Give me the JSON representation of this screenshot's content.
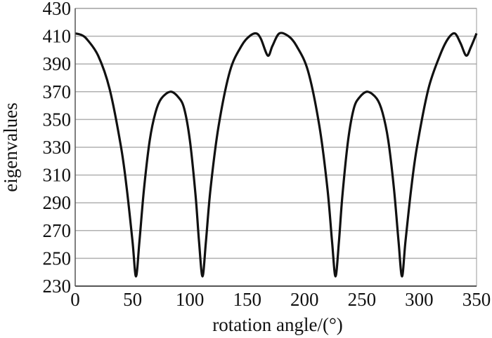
{
  "chart_data": {
    "type": "line",
    "title": "",
    "xlabel": "rotation angle/(°)",
    "ylabel": "eigenvalues",
    "xlim": [
      0,
      350
    ],
    "ylim": [
      230,
      430
    ],
    "xticks": [
      0,
      50,
      100,
      150,
      200,
      250,
      300,
      350
    ],
    "yticks": [
      230,
      250,
      270,
      290,
      310,
      330,
      350,
      370,
      390,
      410,
      430
    ],
    "grid": "horizontal",
    "colors": {
      "line": "#111111",
      "grid": "#b0b0b0",
      "axis": "#555555"
    },
    "series": [
      {
        "name": "eigenvalues",
        "x": [
          0,
          5,
          10,
          20,
          30,
          40,
          45,
          50,
          53,
          56,
          60,
          65,
          70,
          75,
          83,
          90,
          95,
          100,
          105,
          108,
          111,
          114,
          118,
          125,
          135,
          145,
          152,
          158,
          162,
          168,
          172,
          178,
          186,
          193,
          203,
          213,
          220,
          224,
          227,
          230,
          233,
          238,
          243,
          248,
          255,
          263,
          268,
          273,
          278,
          282,
          285,
          288,
          293,
          298,
          308,
          318,
          325,
          331,
          336,
          341,
          345,
          350
        ],
        "y": [
          412,
          411,
          408,
          396,
          372,
          330,
          300,
          262,
          237,
          262,
          300,
          335,
          355,
          365,
          370,
          366,
          358,
          335,
          295,
          262,
          237,
          262,
          300,
          345,
          385,
          403,
          410,
          412,
          408,
          396,
          403,
          412,
          410,
          403,
          385,
          345,
          300,
          262,
          237,
          262,
          295,
          335,
          358,
          366,
          370,
          365,
          355,
          335,
          300,
          262,
          237,
          262,
          300,
          330,
          372,
          396,
          408,
          412,
          405,
          396,
          402,
          412
        ]
      }
    ]
  }
}
